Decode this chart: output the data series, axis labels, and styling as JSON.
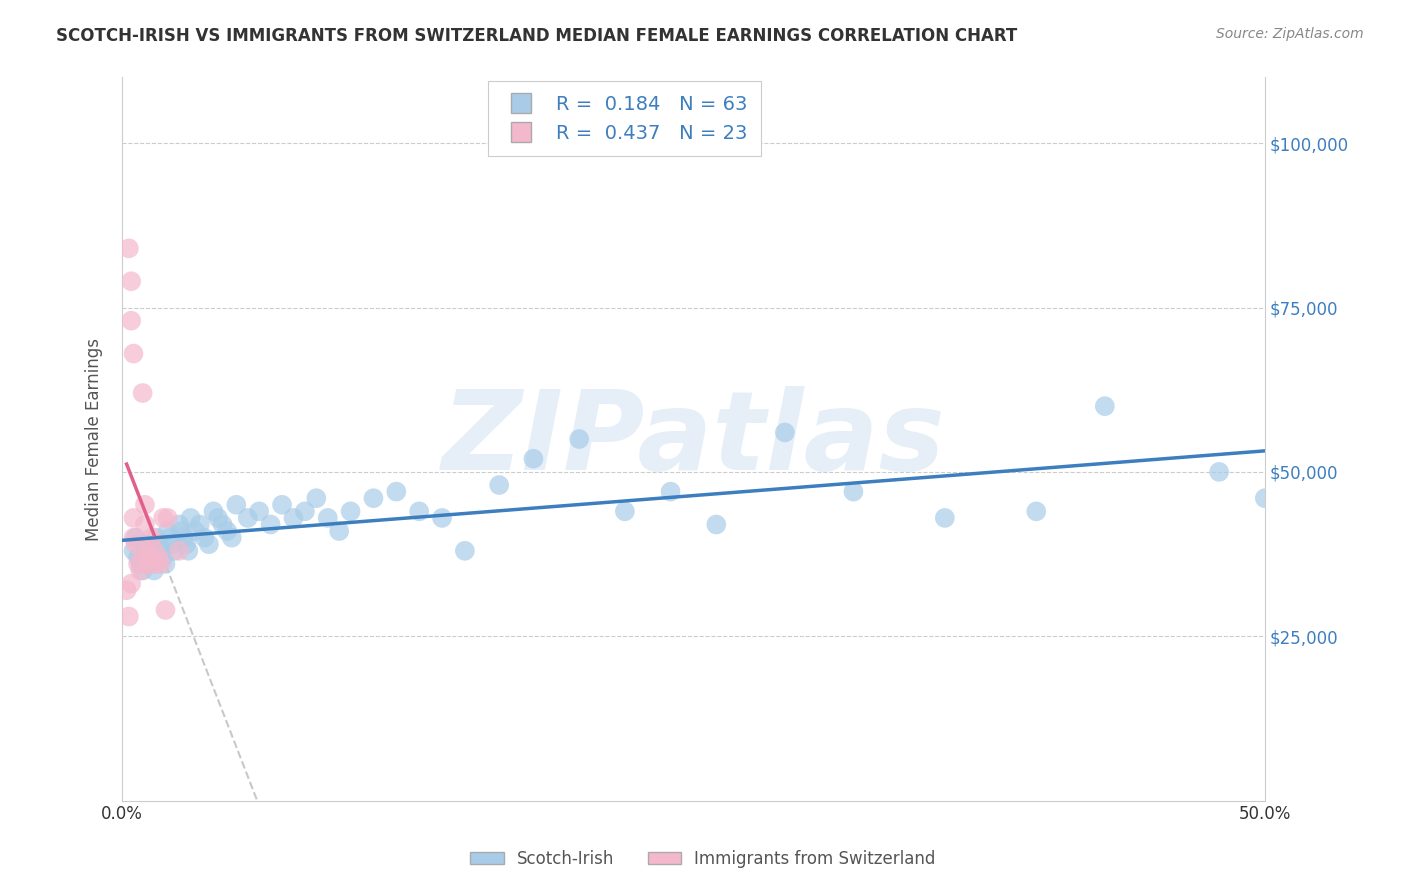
{
  "title": "SCOTCH-IRISH VS IMMIGRANTS FROM SWITZERLAND MEDIAN FEMALE EARNINGS CORRELATION CHART",
  "source": "Source: ZipAtlas.com",
  "ylabel": "Median Female Earnings",
  "xlim": [
    0.0,
    0.5
  ],
  "ylim": [
    0,
    110000
  ],
  "yticks": [
    25000,
    50000,
    75000,
    100000
  ],
  "ytick_labels": [
    "$25,000",
    "$50,000",
    "$75,000",
    "$100,000"
  ],
  "blue_color": "#a8cce8",
  "pink_color": "#f4b8cc",
  "blue_line_color": "#3d7ebf",
  "pink_line_color": "#e0608a",
  "R_blue": 0.184,
  "N_blue": 63,
  "R_pink": 0.437,
  "N_pink": 23,
  "legend_label_blue": "Scotch-Irish",
  "legend_label_pink": "Immigrants from Switzerland",
  "watermark": "ZIPatlas",
  "blue_scatter": {
    "x": [
      0.005,
      0.006,
      0.007,
      0.008,
      0.009,
      0.01,
      0.011,
      0.012,
      0.013,
      0.014,
      0.015,
      0.016,
      0.017,
      0.018,
      0.019,
      0.02,
      0.021,
      0.022,
      0.023,
      0.025,
      0.026,
      0.027,
      0.028,
      0.029,
      0.03,
      0.032,
      0.034,
      0.036,
      0.038,
      0.04,
      0.042,
      0.044,
      0.046,
      0.048,
      0.05,
      0.055,
      0.06,
      0.065,
      0.07,
      0.075,
      0.08,
      0.085,
      0.09,
      0.095,
      0.1,
      0.11,
      0.12,
      0.13,
      0.14,
      0.15,
      0.165,
      0.18,
      0.2,
      0.22,
      0.24,
      0.26,
      0.29,
      0.32,
      0.36,
      0.4,
      0.43,
      0.48,
      0.5
    ],
    "y": [
      38000,
      40000,
      37000,
      36000,
      35000,
      39000,
      38000,
      37000,
      36000,
      35000,
      40000,
      39000,
      38000,
      37000,
      36000,
      41000,
      40000,
      39000,
      38000,
      42000,
      41000,
      40000,
      39000,
      38000,
      43000,
      41000,
      42000,
      40000,
      39000,
      44000,
      43000,
      42000,
      41000,
      40000,
      45000,
      43000,
      44000,
      42000,
      45000,
      43000,
      44000,
      46000,
      43000,
      41000,
      44000,
      46000,
      47000,
      44000,
      43000,
      38000,
      48000,
      52000,
      55000,
      44000,
      47000,
      42000,
      56000,
      47000,
      43000,
      44000,
      60000,
      50000,
      46000
    ]
  },
  "pink_scatter": {
    "x": [
      0.002,
      0.003,
      0.004,
      0.005,
      0.005,
      0.006,
      0.007,
      0.008,
      0.009,
      0.01,
      0.01,
      0.011,
      0.012,
      0.012,
      0.013,
      0.014,
      0.015,
      0.016,
      0.017,
      0.018,
      0.019,
      0.02,
      0.025
    ],
    "y": [
      32000,
      28000,
      33000,
      43000,
      40000,
      39000,
      36000,
      35000,
      37000,
      45000,
      42000,
      38000,
      36000,
      37000,
      40000,
      38000,
      36000,
      37000,
      36000,
      43000,
      29000,
      43000,
      38000
    ]
  },
  "pink_outliers": {
    "x": [
      0.003,
      0.004,
      0.004,
      0.005,
      0.009
    ],
    "y": [
      84000,
      79000,
      73000,
      68000,
      62000
    ]
  }
}
